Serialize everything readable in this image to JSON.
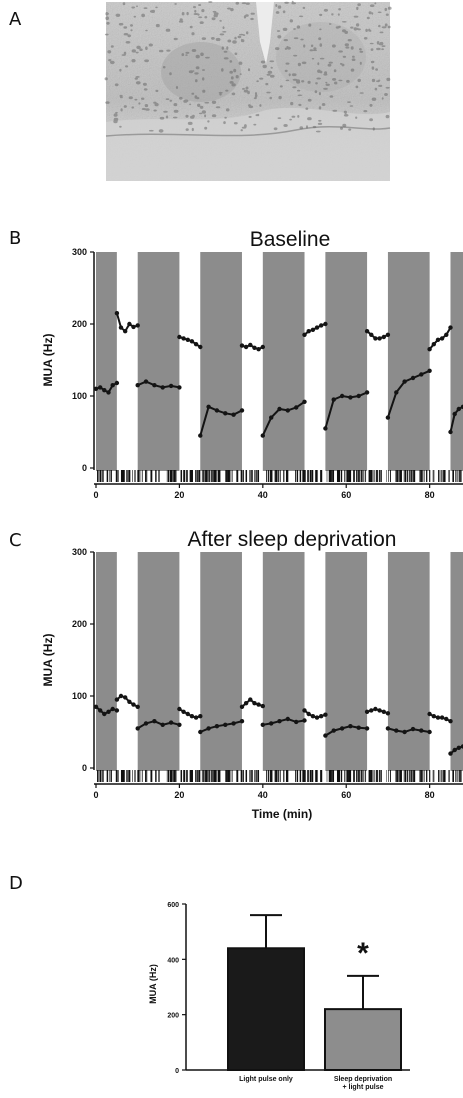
{
  "panel_labels": {
    "a": "A",
    "b": "B",
    "c": "C",
    "d": "D"
  },
  "micrograph": {
    "icon": "histology-micrograph-image"
  },
  "colors": {
    "shade": "#8c8c8c",
    "trace": "#141414",
    "bar_black": "#1a1a1a",
    "bar_gray": "#8d8d8d"
  },
  "chart_data": [
    {
      "type": "line",
      "title": "Baseline",
      "ylabel": "MUA (Hz)",
      "xlabel": "",
      "xlim": [
        0,
        88
      ],
      "ylim": [
        0,
        300
      ],
      "xticks": [
        "0",
        "20",
        "40",
        "60",
        "80"
      ],
      "yticks": [
        "0",
        "100",
        "200",
        "300"
      ],
      "shaded_intervals": [
        [
          0,
          5
        ],
        [
          10,
          20
        ],
        [
          25,
          35
        ],
        [
          40,
          50
        ],
        [
          55,
          65
        ],
        [
          70,
          80
        ],
        [
          85,
          88
        ]
      ],
      "series": [
        {
          "segments": [
            {
              "x": [
                0,
                1,
                2,
                3,
                4,
                5
              ],
              "y": [
                110,
                112,
                108,
                105,
                115,
                118
              ]
            },
            {
              "x": [
                5,
                6,
                7,
                8,
                9,
                10
              ],
              "y": [
                215,
                195,
                190,
                200,
                196,
                198
              ]
            },
            {
              "x": [
                10,
                12,
                14,
                16,
                18,
                20
              ],
              "y": [
                115,
                120,
                115,
                112,
                114,
                112
              ]
            },
            {
              "x": [
                20,
                21,
                22,
                23,
                24,
                25
              ],
              "y": [
                182,
                180,
                178,
                176,
                172,
                168
              ]
            },
            {
              "x": [
                25,
                27,
                29,
                31,
                33,
                35
              ],
              "y": [
                45,
                85,
                80,
                76,
                74,
                80
              ]
            },
            {
              "x": [
                35,
                36,
                37,
                38,
                39,
                40
              ],
              "y": [
                170,
                168,
                171,
                167,
                165,
                168
              ]
            },
            {
              "x": [
                40,
                42,
                44,
                46,
                48,
                50
              ],
              "y": [
                45,
                70,
                82,
                80,
                84,
                92
              ]
            },
            {
              "x": [
                50,
                51,
                52,
                53,
                54,
                55
              ],
              "y": [
                185,
                190,
                192,
                195,
                198,
                200
              ]
            },
            {
              "x": [
                55,
                57,
                59,
                61,
                63,
                65
              ],
              "y": [
                55,
                95,
                100,
                98,
                100,
                105
              ]
            },
            {
              "x": [
                65,
                66,
                67,
                68,
                69,
                70
              ],
              "y": [
                190,
                185,
                180,
                180,
                182,
                185
              ]
            },
            {
              "x": [
                70,
                72,
                74,
                76,
                78,
                80
              ],
              "y": [
                70,
                105,
                120,
                125,
                130,
                135
              ]
            },
            {
              "x": [
                80,
                81,
                82,
                83,
                84,
                85
              ],
              "y": [
                165,
                172,
                178,
                180,
                185,
                195
              ]
            },
            {
              "x": [
                85,
                86,
                87,
                88
              ],
              "y": [
                50,
                75,
                82,
                85
              ]
            }
          ]
        }
      ]
    },
    {
      "type": "line",
      "title": "After sleep deprivation",
      "ylabel": "MUA (Hz)",
      "xlabel": "Time (min)",
      "xlim": [
        0,
        88
      ],
      "ylim": [
        0,
        300
      ],
      "xticks": [
        "0",
        "20",
        "40",
        "60",
        "80"
      ],
      "yticks": [
        "0",
        "100",
        "200",
        "300"
      ],
      "shaded_intervals": [
        [
          0,
          5
        ],
        [
          10,
          20
        ],
        [
          25,
          35
        ],
        [
          40,
          50
        ],
        [
          55,
          65
        ],
        [
          70,
          80
        ],
        [
          85,
          88
        ]
      ],
      "series": [
        {
          "segments": [
            {
              "x": [
                0,
                1,
                2,
                3,
                4,
                5
              ],
              "y": [
                85,
                80,
                75,
                78,
                82,
                80
              ]
            },
            {
              "x": [
                5,
                6,
                7,
                8,
                9,
                10
              ],
              "y": [
                95,
                100,
                98,
                92,
                88,
                85
              ]
            },
            {
              "x": [
                10,
                12,
                14,
                16,
                18,
                20
              ],
              "y": [
                55,
                62,
                65,
                60,
                63,
                60
              ]
            },
            {
              "x": [
                20,
                21,
                22,
                23,
                24,
                25
              ],
              "y": [
                82,
                78,
                75,
                72,
                70,
                72
              ]
            },
            {
              "x": [
                25,
                27,
                29,
                31,
                33,
                35
              ],
              "y": [
                50,
                55,
                58,
                60,
                62,
                65
              ]
            },
            {
              "x": [
                35,
                36,
                37,
                38,
                39,
                40
              ],
              "y": [
                85,
                90,
                95,
                90,
                88,
                86
              ]
            },
            {
              "x": [
                40,
                42,
                44,
                46,
                48,
                50
              ],
              "y": [
                60,
                62,
                65,
                68,
                64,
                66
              ]
            },
            {
              "x": [
                50,
                51,
                52,
                53,
                54,
                55
              ],
              "y": [
                80,
                75,
                72,
                70,
                72,
                74
              ]
            },
            {
              "x": [
                55,
                57,
                59,
                61,
                63,
                65
              ],
              "y": [
                45,
                52,
                55,
                58,
                56,
                55
              ]
            },
            {
              "x": [
                65,
                66,
                67,
                68,
                69,
                70
              ],
              "y": [
                78,
                80,
                82,
                80,
                78,
                76
              ]
            },
            {
              "x": [
                70,
                72,
                74,
                76,
                78,
                80
              ],
              "y": [
                55,
                52,
                50,
                54,
                52,
                50
              ]
            },
            {
              "x": [
                80,
                81,
                82,
                83,
                84,
                85
              ],
              "y": [
                75,
                72,
                70,
                70,
                68,
                65
              ]
            },
            {
              "x": [
                85,
                86,
                87,
                88
              ],
              "y": [
                20,
                25,
                28,
                30
              ]
            }
          ]
        }
      ]
    },
    {
      "type": "bar",
      "title": "",
      "ylabel": "MUA (Hz)",
      "xlabel": "",
      "ylim": [
        0,
        600
      ],
      "yticks": [
        "0",
        "200",
        "400",
        "600"
      ],
      "categories": [
        [
          "Light pulse only"
        ],
        [
          "Sleep deprivation",
          "+ light pulse"
        ]
      ],
      "values": [
        440,
        220
      ],
      "errors": [
        120,
        120
      ],
      "annotation": "*"
    }
  ]
}
